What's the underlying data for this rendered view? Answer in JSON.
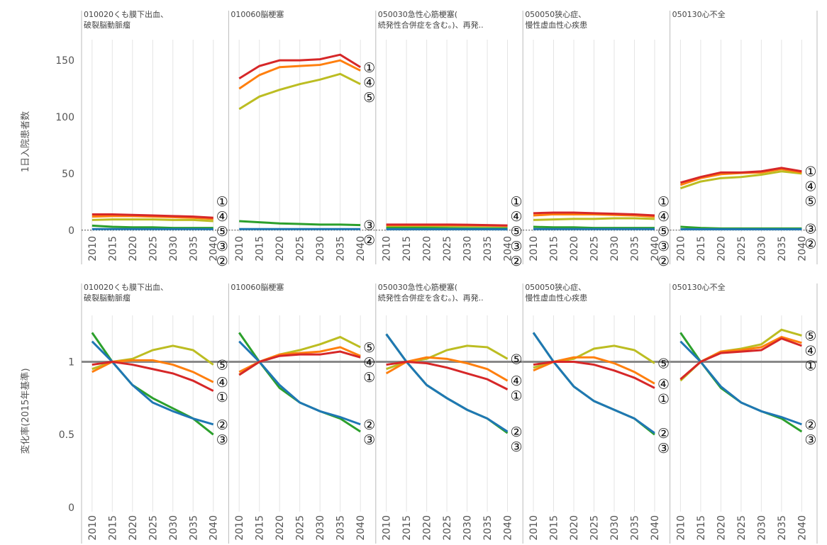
{
  "chart_data": [
    {
      "type": "line",
      "y_label": "1日入院患者数",
      "x": [
        2010,
        2015,
        2020,
        2025,
        2030,
        2035,
        2040
      ],
      "xlim": [
        2007.4,
        2043.8
      ],
      "ylim": [
        -2,
        162
      ],
      "yticks": [
        0,
        50,
        100,
        150
      ],
      "reference_line": 0,
      "reference_style": "dotted",
      "series": [
        {
          "name": "①",
          "color": "#d62728"
        },
        {
          "name": "②",
          "color": "#1f77b4"
        },
        {
          "name": "③",
          "color": "#2ca02c"
        },
        {
          "name": "④",
          "color": "#ff7f0e"
        },
        {
          "name": "⑤",
          "color": "#bcbd22"
        }
      ],
      "panels": [
        {
          "title_lines": [
            "010020くも膜下出血、",
            "破裂脳動脈瘤"
          ],
          "values": [
            [
              14,
              14,
              13.5,
              13,
              12.5,
              12,
              11
            ],
            [
              1,
              1,
              1,
              1,
              1,
              1,
              0.9
            ],
            [
              4,
              3,
              2.5,
              2.5,
              2,
              2,
              2
            ],
            [
              12,
              12.5,
              12.5,
              12,
              11.5,
              11,
              10
            ],
            [
              9,
              9.5,
              9.5,
              9.5,
              9,
              9,
              8
            ]
          ]
        },
        {
          "title_lines": [
            "010060脳梗塞"
          ],
          "values": [
            [
              134,
              145,
              150,
              150,
              151,
              155,
              144
            ],
            [
              1,
              1,
              1,
              1,
              1,
              1,
              1
            ],
            [
              8,
              7,
              6,
              5.5,
              5,
              5,
              4.5
            ],
            [
              125,
              137,
              144,
              145,
              146,
              150,
              141
            ],
            [
              107,
              118,
              124,
              129,
              133,
              138,
              129
            ]
          ]
        },
        {
          "title_lines": [
            "050030急性心筋梗塞(",
            "続発性合併症を含む。)、再発.."
          ],
          "values": [
            [
              5,
              5,
              5,
              5,
              4.8,
              4.5,
              4.2
            ],
            [
              0.8,
              0.8,
              0.8,
              0.8,
              0.8,
              0.8,
              0.7
            ],
            [
              2,
              2,
              2,
              1.8,
              1.7,
              1.6,
              1.5
            ],
            [
              4.5,
              4.6,
              4.6,
              4.5,
              4.3,
              4.1,
              3.8
            ],
            [
              3.5,
              3.6,
              3.7,
              3.8,
              3.8,
              3.7,
              3.5
            ]
          ]
        },
        {
          "title_lines": [
            "050050狭心症、",
            "慢性虚血性心疾患"
          ],
          "values": [
            [
              15,
              15.5,
              15.5,
              15,
              14.5,
              14,
              13
            ],
            [
              1,
              1,
              1,
              1,
              1,
              1,
              1
            ],
            [
              3,
              2.5,
              2.5,
              2,
              2,
              2,
              2
            ],
            [
              13,
              14,
              14,
              14,
              13.5,
              13,
              12
            ],
            [
              9,
              9.5,
              10,
              10,
              10.5,
              10.5,
              10
            ]
          ]
        },
        {
          "title_lines": [
            "050130心不全"
          ],
          "values": [
            [
              42,
              47,
              51,
              51,
              52,
              55,
              52
            ],
            [
              0.8,
              0.8,
              0.8,
              0.8,
              0.8,
              0.8,
              0.8
            ],
            [
              3,
              2,
              1.5,
              1.5,
              1.5,
              1.5,
              1.5
            ],
            [
              40,
              46,
              49.5,
              50.5,
              51,
              54,
              51
            ],
            [
              37,
              43,
              46,
              47,
              49,
              52,
              50
            ]
          ]
        }
      ]
    },
    {
      "type": "line",
      "y_label": "変化率(2015年基準)",
      "x": [
        2010,
        2015,
        2020,
        2025,
        2030,
        2035,
        2040
      ],
      "xlim": [
        2007.4,
        2043.8
      ],
      "ylim": [
        -0.03,
        1.27
      ],
      "yticks": [
        0,
        0.5,
        1
      ],
      "reference_line": 1,
      "reference_style": "solid",
      "series": [
        {
          "name": "①",
          "color": "#d62728"
        },
        {
          "name": "②",
          "color": "#1f77b4"
        },
        {
          "name": "③",
          "color": "#2ca02c"
        },
        {
          "name": "④",
          "color": "#ff7f0e"
        },
        {
          "name": "⑤",
          "color": "#bcbd22"
        }
      ],
      "panels": [
        {
          "title_lines": [
            "010020くも膜下出血、",
            "破裂脳動脈瘤"
          ],
          "values": [
            [
              0.98,
              1,
              0.98,
              0.95,
              0.92,
              0.87,
              0.8
            ],
            [
              1.14,
              1,
              0.84,
              0.72,
              0.66,
              0.61,
              0.57
            ],
            [
              1.2,
              1,
              0.84,
              0.75,
              0.68,
              0.61,
              0.5
            ],
            [
              0.93,
              1,
              1.01,
              1.01,
              0.98,
              0.93,
              0.86
            ],
            [
              0.95,
              1,
              1.02,
              1.08,
              1.11,
              1.08,
              0.98
            ]
          ]
        },
        {
          "title_lines": [
            "010060脳梗塞"
          ],
          "values": [
            [
              0.91,
              1,
              1.04,
              1.05,
              1.05,
              1.07,
              1.03
            ],
            [
              1.14,
              1,
              0.84,
              0.72,
              0.66,
              0.62,
              0.57
            ],
            [
              1.2,
              1,
              0.82,
              0.72,
              0.66,
              0.61,
              0.52
            ],
            [
              0.93,
              1,
              1.05,
              1.06,
              1.07,
              1.1,
              1.04
            ],
            [
              0.91,
              1,
              1.05,
              1.08,
              1.12,
              1.17,
              1.1
            ]
          ]
        },
        {
          "title_lines": [
            "050030急性心筋梗塞(",
            "続発性合併症を含む。)、再発.."
          ],
          "values": [
            [
              0.98,
              1,
              0.99,
              0.96,
              0.92,
              0.88,
              0.81
            ],
            [
              1.19,
              1,
              0.84,
              0.75,
              0.67,
              0.61,
              0.52
            ],
            [
              1.19,
              1,
              0.84,
              0.75,
              0.67,
              0.61,
              0.51
            ],
            [
              0.92,
              1,
              1.03,
              1.02,
              0.99,
              0.95,
              0.87
            ],
            [
              0.95,
              1,
              1.02,
              1.08,
              1.11,
              1.1,
              1.02
            ]
          ]
        },
        {
          "title_lines": [
            "050050狭心症、",
            "慢性虚血性心疾患"
          ],
          "values": [
            [
              0.98,
              1,
              1,
              0.98,
              0.94,
              0.89,
              0.82
            ],
            [
              1.2,
              1,
              0.83,
              0.73,
              0.67,
              0.61,
              0.51
            ],
            [
              1.2,
              1,
              0.83,
              0.73,
              0.67,
              0.61,
              0.5
            ],
            [
              0.94,
              1,
              1.03,
              1.03,
              0.99,
              0.93,
              0.85
            ],
            [
              0.96,
              1,
              1.02,
              1.09,
              1.11,
              1.08,
              0.99
            ]
          ]
        },
        {
          "title_lines": [
            "050130心不全"
          ],
          "values": [
            [
              0.88,
              1,
              1.06,
              1.07,
              1.08,
              1.16,
              1.11
            ],
            [
              1.14,
              1,
              0.83,
              0.72,
              0.66,
              0.62,
              0.57
            ],
            [
              1.2,
              1,
              0.82,
              0.72,
              0.66,
              0.61,
              0.52
            ],
            [
              0.88,
              1,
              1.07,
              1.08,
              1.1,
              1.17,
              1.13
            ],
            [
              0.87,
              1,
              1.07,
              1.09,
              1.12,
              1.22,
              1.18
            ]
          ]
        }
      ]
    }
  ]
}
